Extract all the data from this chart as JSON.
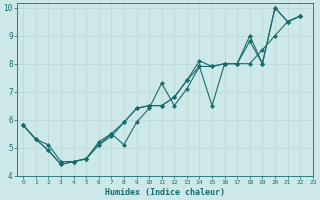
{
  "xlabel": "Humidex (Indice chaleur)",
  "xlim": [
    -0.5,
    23
  ],
  "ylim": [
    4,
    10.15
  ],
  "yticks": [
    4,
    5,
    6,
    7,
    8,
    9,
    10
  ],
  "xticks": [
    0,
    1,
    2,
    3,
    4,
    5,
    6,
    7,
    8,
    9,
    10,
    11,
    12,
    13,
    14,
    15,
    16,
    17,
    18,
    19,
    20,
    21,
    22,
    23
  ],
  "bg_color": "#cce8e8",
  "grid_color": "#b8d4d4",
  "line_color": "#1a6b6b",
  "line1_x": [
    0,
    1,
    2,
    3,
    4,
    5,
    6,
    7,
    8,
    9,
    10,
    11,
    12,
    13,
    14,
    15,
    16,
    17,
    18,
    19,
    20,
    21,
    22
  ],
  "line1_y": [
    5.8,
    5.3,
    4.9,
    4.4,
    4.5,
    4.6,
    5.2,
    5.5,
    5.1,
    5.9,
    6.4,
    7.3,
    6.5,
    7.1,
    7.9,
    7.9,
    8.0,
    8.0,
    8.8,
    8.0,
    10.0,
    9.5,
    9.7
  ],
  "line2_x": [
    0,
    1,
    2,
    3,
    4,
    5,
    6,
    7,
    8,
    9,
    10,
    11,
    12,
    13,
    14,
    15,
    16,
    17,
    18,
    19,
    20,
    21,
    22
  ],
  "line2_y": [
    5.8,
    5.3,
    4.9,
    4.4,
    4.5,
    4.6,
    5.1,
    5.5,
    5.9,
    6.4,
    6.5,
    6.5,
    6.8,
    7.4,
    8.1,
    7.9,
    8.0,
    8.0,
    8.0,
    8.5,
    9.0,
    9.5,
    9.7
  ],
  "line3_x": [
    0,
    1,
    2,
    3,
    4,
    5,
    6,
    7,
    8,
    9,
    10,
    11,
    12,
    13,
    14,
    15,
    16,
    17,
    18,
    19,
    20,
    21,
    22
  ],
  "line3_y": [
    5.8,
    5.3,
    5.1,
    4.5,
    4.5,
    4.6,
    5.1,
    5.4,
    5.9,
    6.4,
    6.5,
    6.5,
    6.8,
    7.4,
    7.9,
    6.5,
    8.0,
    8.0,
    9.0,
    8.0,
    10.0,
    9.5,
    9.7
  ]
}
